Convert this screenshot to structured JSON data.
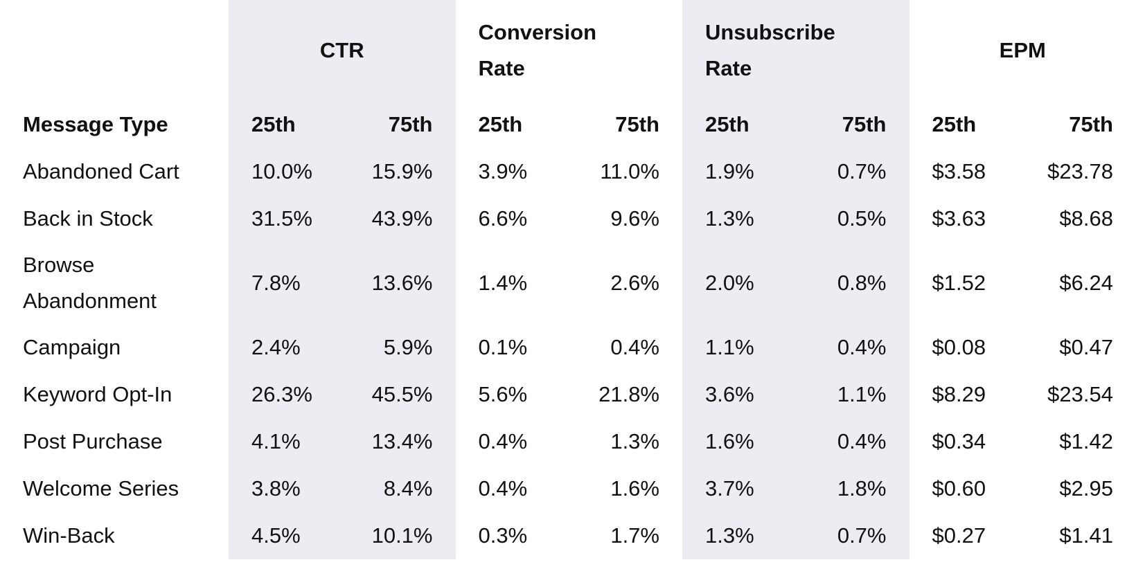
{
  "table": {
    "groups": [
      "CTR",
      "Conversion Rate",
      "Unsubscribe Rate",
      "EPM"
    ],
    "header": [
      "Message Type",
      "25th",
      "75th",
      "25th",
      "75th",
      "25th",
      "75th",
      "25th",
      "75th"
    ],
    "rows": [
      [
        "Abandoned Cart",
        "10.0%",
        "15.9%",
        "3.9%",
        "11.0%",
        "1.9%",
        "0.7%",
        "$3.58",
        "$23.78"
      ],
      [
        "Back in Stock",
        "31.5%",
        "43.9%",
        "6.6%",
        "9.6%",
        "1.3%",
        "0.5%",
        "$3.63",
        "$8.68"
      ],
      [
        "Browse Abandonment",
        "7.8%",
        "13.6%",
        "1.4%",
        "2.6%",
        "2.0%",
        "0.8%",
        "$1.52",
        "$6.24"
      ],
      [
        "Campaign",
        "2.4%",
        "5.9%",
        "0.1%",
        "0.4%",
        "1.1%",
        "0.4%",
        "$0.08",
        "$0.47"
      ],
      [
        "Keyword Opt-In",
        "26.3%",
        "45.5%",
        "5.6%",
        "21.8%",
        "3.6%",
        "1.1%",
        "$8.29",
        "$23.54"
      ],
      [
        "Post Purchase",
        "4.1%",
        "13.4%",
        "0.4%",
        "1.3%",
        "1.6%",
        "0.4%",
        "$0.34",
        "$1.42"
      ],
      [
        "Welcome Series",
        "3.8%",
        "8.4%",
        "0.4%",
        "1.6%",
        "3.7%",
        "1.8%",
        "$0.60",
        "$2.95"
      ],
      [
        "Win-Back",
        "4.5%",
        "10.1%",
        "0.3%",
        "1.7%",
        "1.3%",
        "0.7%",
        "$0.27",
        "$1.41"
      ]
    ]
  }
}
